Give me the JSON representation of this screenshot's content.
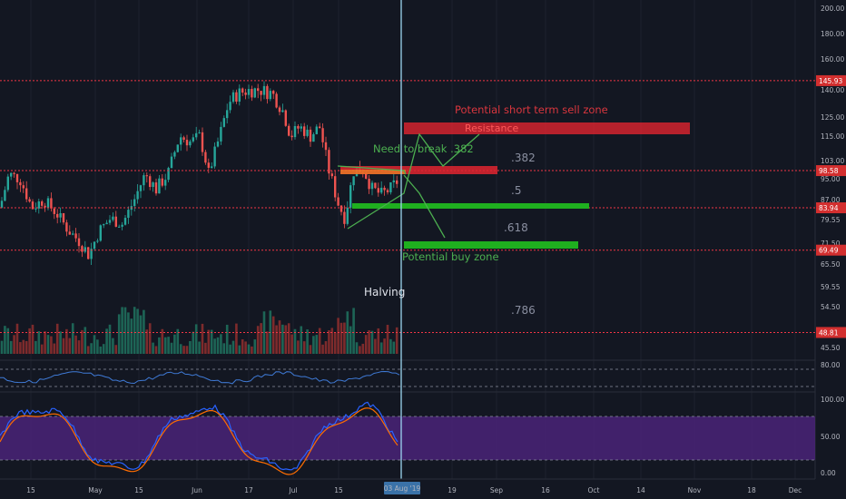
{
  "chart_data": {
    "type": "candlestick",
    "price_axis_ticks": [
      "200.00",
      "180.00",
      "160.00",
      "140.00",
      "125.00",
      "115.00",
      "103.00",
      "95.00",
      "87.00",
      "79.55",
      "71.50",
      "65.50",
      "59.55",
      "54.50",
      "45.50"
    ],
    "rsi_axis_ticks": [
      "80.00"
    ],
    "stoch_axis_ticks": [
      "100.00",
      "50.00",
      "0.00"
    ],
    "time_axis_labels": [
      "15",
      "May",
      "15",
      "Jun",
      "17",
      "Jul",
      "15",
      "19",
      "Sep",
      "16",
      "Oct",
      "14",
      "Nov",
      "18",
      "Dec"
    ],
    "cursor_date_label": "03 Aug '19",
    "horizontal_levels": [
      {
        "price": 145.93,
        "label": "145.93"
      },
      {
        "price": 98.58,
        "label": "98.58"
      },
      {
        "price": 83.94,
        "label": "83.94"
      },
      {
        "price": 69.49,
        "label": "69.49"
      },
      {
        "price": 48.81,
        "label": "48.81"
      }
    ],
    "zones": [
      {
        "label": "Resistance",
        "color": "#e0242f"
      },
      {
        "label": "Potential buy zone",
        "color": "#1faf1f"
      }
    ],
    "fib_labels": [
      ".382",
      ".5",
      ".618",
      ".786"
    ],
    "annotations": [
      {
        "text": "Potential short term sell zone",
        "color": "#d9363e"
      },
      {
        "text": "Need to break .382",
        "color": "#4caf50"
      },
      {
        "text": "Halving",
        "color": "#e0e3eb"
      },
      {
        "text": "Potential buy zone",
        "color": "#4caf50"
      }
    ],
    "colors": {
      "up": "#26a69a",
      "down": "#ef5350",
      "bg": "#131722",
      "level": "#f23645",
      "cursor": "#9cd6f0",
      "stoch_band": "#4a2378"
    }
  }
}
